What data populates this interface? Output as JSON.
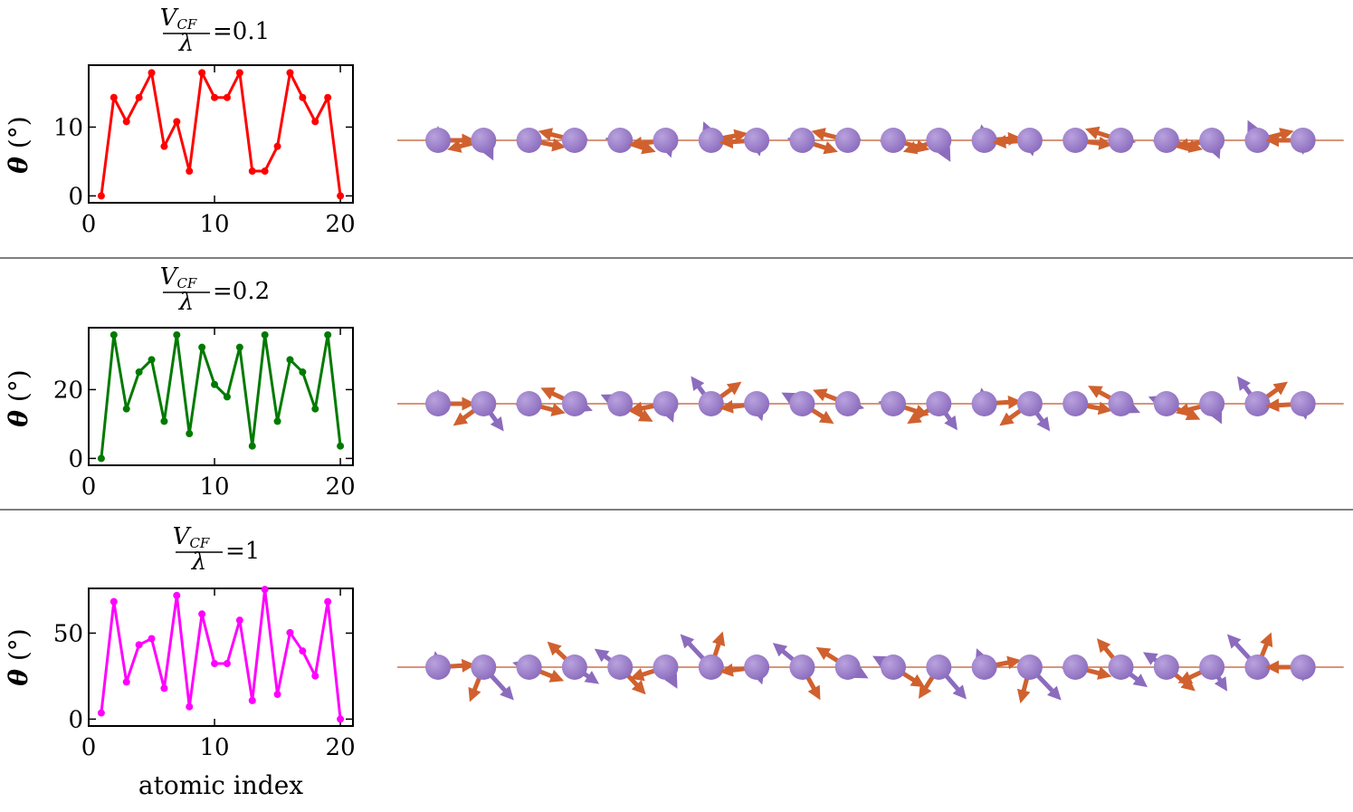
{
  "colors": {
    "atom": "#8b6cbd",
    "atom_highlight": "#b9a2de",
    "spin_arrow": "#8b6cbd",
    "orbital_arrow": "#d0612e",
    "chain_line": "#c8724f",
    "separator": "#555555"
  },
  "chart_data": [
    {
      "type": "line",
      "title": {
        "numerator_base": "V",
        "numerator_sub": "CF",
        "denominator": "λ",
        "equals": "=0.1"
      },
      "ylabel": {
        "symbol": "θ",
        "unit": "(°)"
      },
      "xlabel": "",
      "xlim": [
        0,
        21
      ],
      "ylim": [
        -1,
        19
      ],
      "xticks": [
        "0",
        "10",
        "20"
      ],
      "yticks": [
        "0",
        "10"
      ],
      "color": "#ff0000",
      "x": [
        1,
        2,
        3,
        4,
        5,
        6,
        7,
        8,
        9,
        10,
        11,
        12,
        13,
        14,
        15,
        16,
        17,
        18,
        19,
        20
      ],
      "values": [
        0,
        14.3,
        10.8,
        14.3,
        17.9,
        7.2,
        10.8,
        3.6,
        17.9,
        14.3,
        14.3,
        17.9,
        3.6,
        3.6,
        7.2,
        17.9,
        14.3,
        10.8,
        14.3,
        0
      ]
    },
    {
      "type": "line",
      "title": {
        "numerator_base": "V",
        "numerator_sub": "CF",
        "denominator": "λ",
        "equals": "=0.2"
      },
      "ylabel": {
        "symbol": "θ",
        "unit": "(°)"
      },
      "xlabel": "",
      "xlim": [
        0,
        21
      ],
      "ylim": [
        -2,
        38
      ],
      "xticks": [
        "0",
        "10",
        "20"
      ],
      "yticks": [
        "0",
        "20"
      ],
      "color": "#007a00",
      "x": [
        1,
        2,
        3,
        4,
        5,
        6,
        7,
        8,
        9,
        10,
        11,
        12,
        13,
        14,
        15,
        16,
        17,
        18,
        19,
        20
      ],
      "values": [
        0,
        35.9,
        14.4,
        25.1,
        28.7,
        10.8,
        35.9,
        7.2,
        32.3,
        21.5,
        17.9,
        32.3,
        3.6,
        35.9,
        10.8,
        28.7,
        25.1,
        14.4,
        35.9,
        3.6
      ]
    },
    {
      "type": "line",
      "title": {
        "numerator_base": "V",
        "numerator_sub": "CF",
        "denominator": "λ",
        "equals": "=1"
      },
      "ylabel": {
        "symbol": "θ",
        "unit": "(°)"
      },
      "xlabel": "atomic index",
      "xlim": [
        0,
        21
      ],
      "ylim": [
        -4,
        76
      ],
      "xticks": [
        "0",
        "10",
        "20"
      ],
      "yticks": [
        "0",
        "50"
      ],
      "color": "#ff00ff",
      "x": [
        1,
        2,
        3,
        4,
        5,
        6,
        7,
        8,
        9,
        10,
        11,
        12,
        13,
        14,
        15,
        16,
        17,
        18,
        19,
        20
      ],
      "values": [
        3.6,
        68.3,
        21.6,
        43.2,
        46.8,
        17.9,
        71.9,
        7.2,
        61.1,
        32.3,
        32.3,
        57.5,
        10.8,
        75.4,
        14.4,
        50.3,
        39.6,
        25.1,
        68.3,
        0
      ]
    }
  ]
}
